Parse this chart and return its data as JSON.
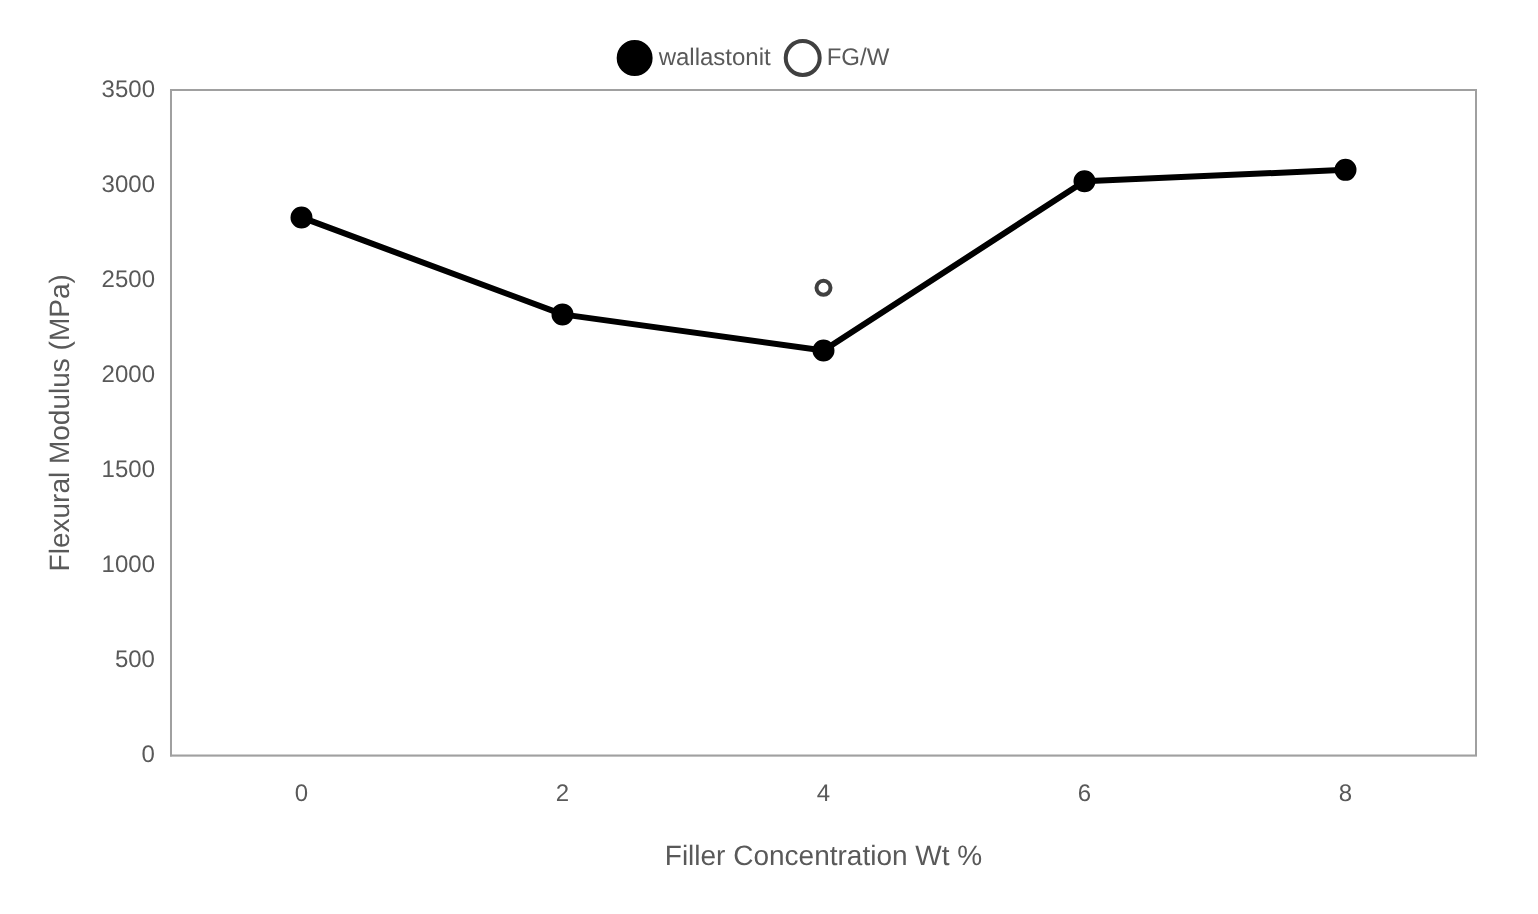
{
  "chart_data": {
    "type": "line",
    "xlabel": "Filler Concentration Wt %",
    "ylabel": "Flexural Modulus (MPa)",
    "categories": [
      "0",
      "2",
      "4",
      "6",
      "8"
    ],
    "series": [
      {
        "name": "wallastonit",
        "color": "#000000",
        "values": [
          2830,
          2320,
          2130,
          3020,
          3080
        ]
      },
      {
        "name": "FG/W",
        "color": "#404040",
        "values": [
          null,
          null,
          2460,
          null,
          null
        ]
      }
    ],
    "ylim": [
      0,
      3500
    ],
    "yticks": [
      0,
      500,
      1000,
      1500,
      2000,
      2500,
      3000,
      3500
    ],
    "grid": false,
    "legend": "top",
    "marker": "circle",
    "line_style": "solid"
  }
}
